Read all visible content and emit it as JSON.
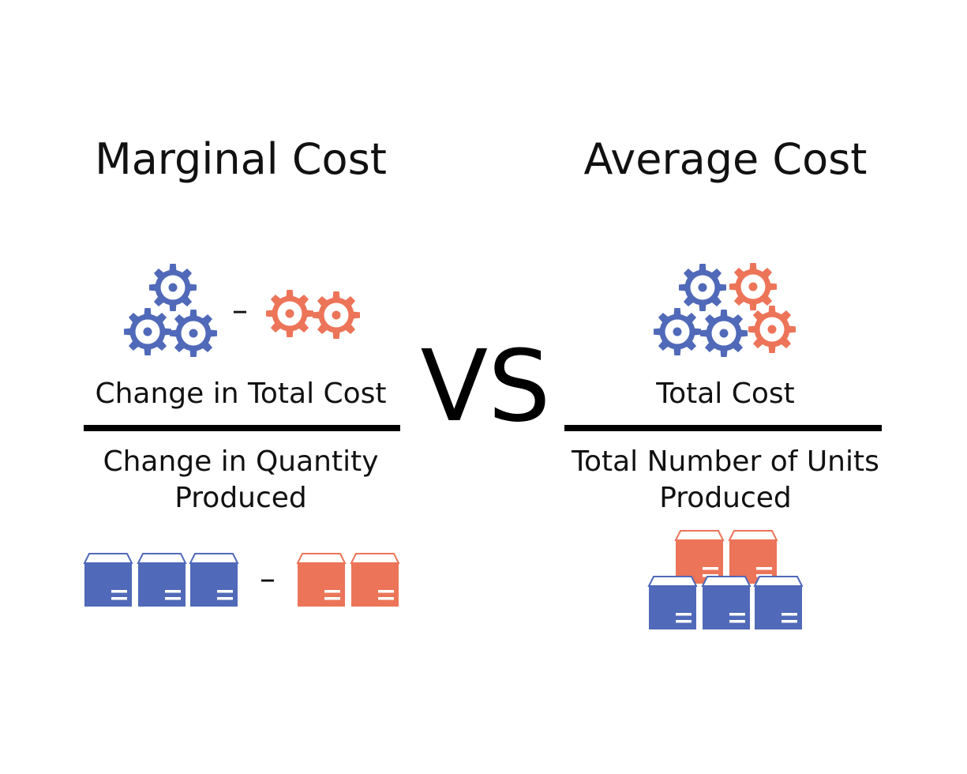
{
  "colors": {
    "blue": "#5069b8",
    "orange": "#ec7458",
    "text": "#111111",
    "background": "#ffffff"
  },
  "vs_label": "VS",
  "marginal": {
    "title": "Marginal Cost",
    "numerator": "Change in Total Cost",
    "denominator_line1": "Change in Quantity",
    "denominator_line2": "Produced",
    "gear_minus": "–",
    "box_minus": "–",
    "icons": {
      "gear": "gear-icon",
      "box": "box-icon"
    }
  },
  "average": {
    "title": "Average Cost",
    "numerator": "Total Cost",
    "denominator_line1": "Total Number of Units",
    "denominator_line2": "Produced",
    "icons": {
      "gear": "gear-icon",
      "box": "box-icon"
    }
  }
}
